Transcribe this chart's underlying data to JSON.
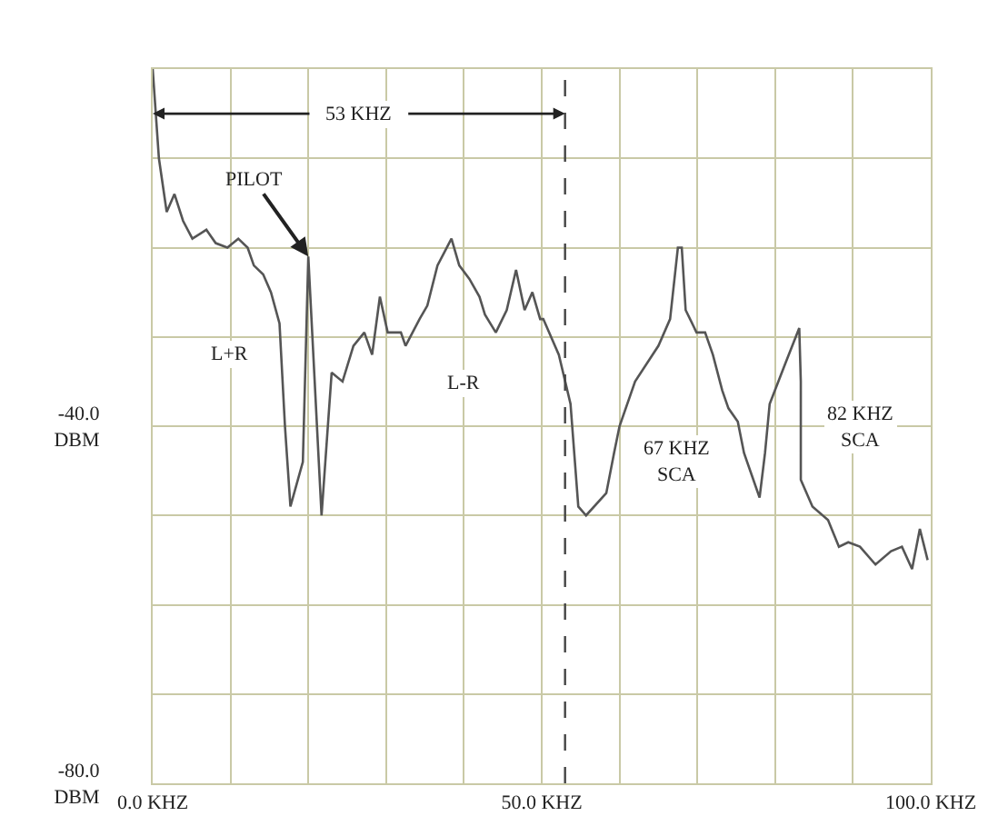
{
  "chart_data": {
    "type": "line",
    "x": [
      0,
      0.8,
      1.8,
      2.8,
      3.9,
      5.1,
      6.9,
      8.1,
      9.6,
      11,
      12.2,
      13,
      14.2,
      15.2,
      16.3,
      17,
      17.7,
      19.3,
      20,
      21.7,
      23,
      24.4,
      25.8,
      27.2,
      28.2,
      29.2,
      30.2,
      31.9,
      32.5,
      34.3,
      35.3,
      36.6,
      38.4,
      39.4,
      40.7,
      42,
      42.7,
      44.1,
      45.5,
      46.7,
      47.8,
      48.8,
      49.8,
      50.2,
      52.2,
      53.7,
      54.7,
      55.7,
      58.3,
      59.3,
      60,
      62,
      65,
      66.5,
      67.5,
      68,
      68.5,
      69.9,
      71,
      72,
      73.2,
      74,
      75.2,
      76,
      77,
      78,
      78.7,
      79.3,
      81.3,
      83.1,
      83.3,
      83.3,
      84.8,
      86.8,
      88.2,
      89.4,
      90.9,
      92.9,
      94.9,
      96.3,
      97.6,
      98.6,
      99.6
    ],
    "values": [
      0,
      -10,
      -16,
      -14,
      -17,
      -19,
      -18,
      -19.5,
      -20,
      -19,
      -20,
      -22,
      -23,
      -25,
      -28.5,
      -40,
      -49,
      -44,
      -21,
      -50,
      -34,
      -35,
      -31,
      -29.5,
      -32,
      -25.5,
      -29.5,
      -29.5,
      -31,
      -28,
      -26.5,
      -22,
      -19,
      -22,
      -23.5,
      -25.5,
      -27.5,
      -29.5,
      -27,
      -22.5,
      -27,
      -25,
      -28,
      -28,
      -32,
      -37.5,
      -49,
      -50,
      -47.5,
      -43,
      -40,
      -35,
      -31,
      -28,
      -20,
      -20,
      -27,
      -29.5,
      -29.5,
      -32,
      -36,
      -38,
      -39.5,
      -43,
      -45.5,
      -48,
      -43,
      -37.5,
      -33,
      -29,
      -35,
      -46,
      -49,
      -50.5,
      -53.5,
      -53,
      -53.5,
      -55.5,
      -54,
      -53.5,
      -56,
      -51.5,
      -55
    ],
    "color": "#555555",
    "marker": "none",
    "line_style": "solid",
    "xlim": [
      0,
      100
    ],
    "xticks": [
      {
        "value": 0,
        "label": "0.0 KHZ"
      },
      {
        "value": 10,
        "label": null
      },
      {
        "value": 20,
        "label": null
      },
      {
        "value": 30,
        "label": null
      },
      {
        "value": 40,
        "label": null
      },
      {
        "value": 50,
        "label": "50.0 KHZ"
      },
      {
        "value": 60,
        "label": null
      },
      {
        "value": 70,
        "label": null
      },
      {
        "value": 80,
        "label": null
      },
      {
        "value": 90,
        "label": null
      },
      {
        "value": 100,
        "label": "100.0 KHZ"
      }
    ],
    "ylim": [
      -80,
      0
    ],
    "yticks": [
      {
        "value": -80,
        "label": "-80.0\nDBM"
      },
      {
        "value": -70,
        "label": null
      },
      {
        "value": -60,
        "label": null
      },
      {
        "value": -50,
        "label": null
      },
      {
        "value": -40,
        "label": "-40.0\nDBM"
      },
      {
        "value": -30,
        "label": null
      },
      {
        "value": -20,
        "label": null
      },
      {
        "value": -10,
        "label": null
      },
      {
        "value": 0,
        "label": null
      }
    ],
    "grid": true,
    "ref_lines": [
      {
        "axis": "x",
        "value": 53,
        "line_style": "dashed",
        "color": "#444444"
      }
    ],
    "annotations": [
      {
        "text": "53 KHZ",
        "x": 53,
        "y": -5
      },
      {
        "text": "PILOT",
        "x": 20,
        "y": -21
      },
      "L+R",
      "L-R",
      "67 KHZ\nSCA",
      "82 KHZ\nSCA"
    ]
  }
}
